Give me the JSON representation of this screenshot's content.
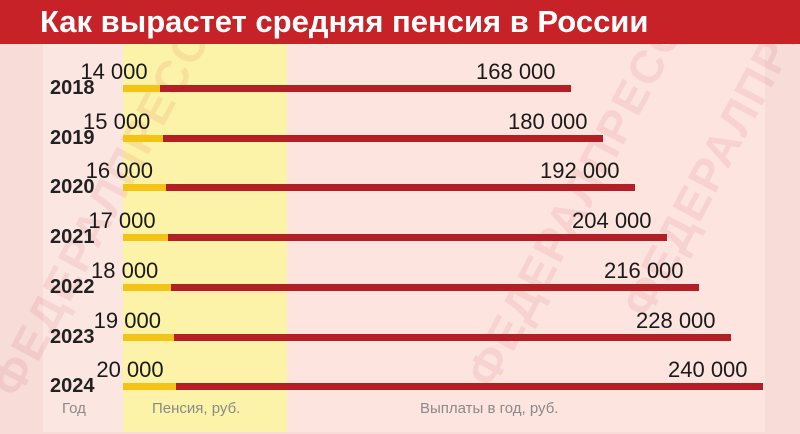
{
  "header": {
    "title": "Как вырастет средняя пенсия в России"
  },
  "footer": {
    "year_label": "Год",
    "pension_label": "Пенсия, руб.",
    "payments_label": "Выплаты в год, руб."
  },
  "watermark": {
    "text": "ФЕДЕРАЛПРЕСС"
  },
  "colors": {
    "title_bg": "#c62227",
    "pension_bar": "#f3c316",
    "payments_bar": "#b21f24",
    "pension_column_bg": "#fdf3a8"
  },
  "chart_data": {
    "type": "bar",
    "orientation": "horizontal",
    "title": "Как вырастет средняя пенсия в России",
    "categories": [
      "2018",
      "2019",
      "2020",
      "2021",
      "2022",
      "2023",
      "2024"
    ],
    "series": [
      {
        "name": "Пенсия, руб.",
        "values": [
          14000,
          15000,
          16000,
          17000,
          18000,
          19000,
          20000
        ],
        "labels": [
          "14 000",
          "15 000",
          "16 000",
          "17 000",
          "18 000",
          "19 000",
          "20 000"
        ]
      },
      {
        "name": "Выплаты в год, руб.",
        "values": [
          168000,
          180000,
          192000,
          204000,
          216000,
          228000,
          240000
        ],
        "labels": [
          "168 000",
          "180 000",
          "192 000",
          "204 000",
          "216 000",
          "228 000",
          "240 000"
        ]
      }
    ]
  }
}
